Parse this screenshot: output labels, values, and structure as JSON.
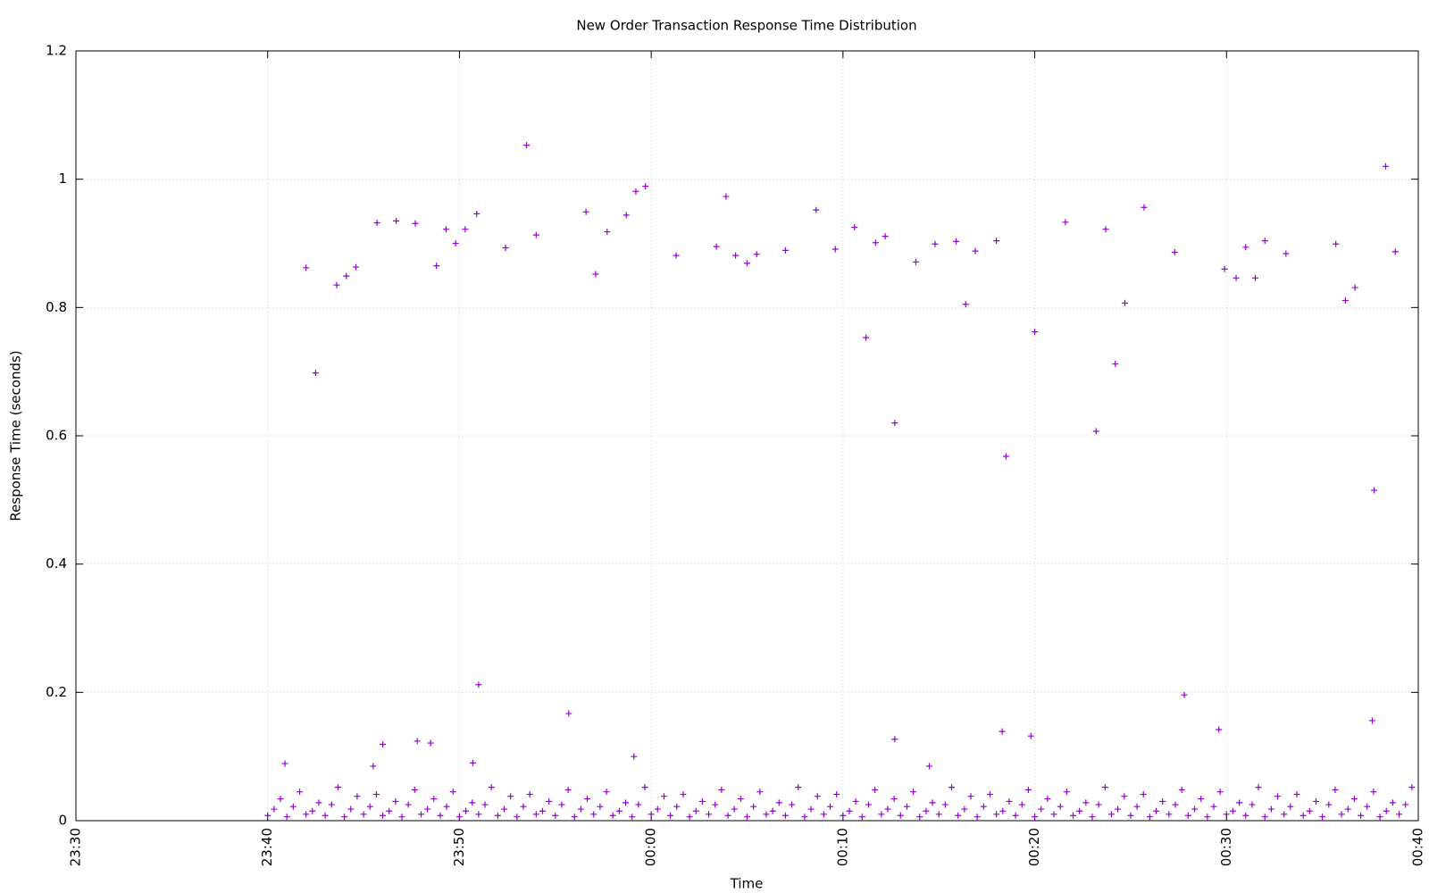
{
  "chart_data": {
    "type": "scatter",
    "title": "New Order Transaction Response Time Distribution",
    "x_label": "Time",
    "y_label": "Response Time (seconds)",
    "color": "#9400d3",
    "grid": true,
    "xlim": [
      "23:30",
      "00:40"
    ],
    "xticks": [
      "23:30",
      "23:40",
      "23:50",
      "00:00",
      "00:10",
      "00:20",
      "00:30",
      "00:40"
    ],
    "ylim": [
      0,
      1.2
    ],
    "yticks": [
      0,
      0.2,
      0.4,
      0.6,
      0.8,
      1,
      1.2
    ],
    "x": [
      "23:42:00",
      "23:42:30",
      "23:43:36",
      "23:44:06",
      "23:44:36",
      "23:45:42",
      "23:46:42",
      "23:47:42",
      "23:48:48",
      "23:49:18",
      "23:49:48",
      "23:50:18",
      "23:50:54",
      "23:52:24",
      "23:53:30",
      "23:54:00",
      "23:56:36",
      "23:57:06",
      "23:57:42",
      "23:58:42",
      "23:59:12",
      "23:59:42",
      "00:01:18",
      "00:03:24",
      "00:03:54",
      "00:04:24",
      "00:05:00",
      "00:05:30",
      "00:07:00",
      "00:08:36",
      "00:09:36",
      "00:10:36",
      "00:11:12",
      "00:11:42",
      "00:12:12",
      "00:12:42",
      "00:13:48",
      "00:14:48",
      "00:15:54",
      "00:16:24",
      "00:16:54",
      "00:18:00",
      "00:18:30",
      "00:20:00",
      "00:21:36",
      "00:23:12",
      "00:23:42",
      "00:24:12",
      "00:24:42",
      "00:25:42",
      "00:27:18",
      "00:29:54",
      "00:30:30",
      "00:31:00",
      "00:31:30",
      "00:32:00",
      "00:33:06",
      "00:35:42",
      "00:36:12",
      "00:36:42",
      "00:37:42",
      "00:38:18",
      "00:38:48",
      "23:51:00",
      "23:55:42",
      "00:27:48",
      "00:37:36",
      "00:29:36",
      "00:18:18",
      "00:19:48",
      "00:12:42",
      "23:47:48",
      "23:46:00",
      "23:40:54",
      "23:48:30",
      "23:45:30",
      "23:50:42",
      "23:59:06",
      "00:14:30",
      "23:40:00",
      "23:40:20",
      "23:40:40",
      "23:41:00",
      "23:41:20",
      "23:41:40",
      "23:42:00",
      "23:42:20",
      "23:42:40",
      "23:43:00",
      "23:43:20",
      "23:43:40",
      "23:44:00",
      "23:44:20",
      "23:44:40",
      "23:45:00",
      "23:45:20",
      "23:45:40",
      "23:46:00",
      "23:46:20",
      "23:46:40",
      "23:47:00",
      "23:47:20",
      "23:47:40",
      "23:48:00",
      "23:48:20",
      "23:48:40",
      "23:49:00",
      "23:49:20",
      "23:49:40",
      "23:50:00",
      "23:50:20",
      "23:50:40",
      "23:51:00",
      "23:51:20",
      "23:51:40",
      "23:52:00",
      "23:52:20",
      "23:52:40",
      "23:53:00",
      "23:53:20",
      "23:53:40",
      "23:54:00",
      "23:54:20",
      "23:54:40",
      "23:55:00",
      "23:55:20",
      "23:55:40",
      "23:56:00",
      "23:56:20",
      "23:56:40",
      "23:57:00",
      "23:57:20",
      "23:57:40",
      "23:58:00",
      "23:58:20",
      "23:58:40",
      "23:59:00",
      "23:59:20",
      "23:59:40",
      "00:00:00",
      "00:00:20",
      "00:00:40",
      "00:01:00",
      "00:01:20",
      "00:01:40",
      "00:02:00",
      "00:02:20",
      "00:02:40",
      "00:03:00",
      "00:03:20",
      "00:03:40",
      "00:04:00",
      "00:04:20",
      "00:04:40",
      "00:05:00",
      "00:05:20",
      "00:05:40",
      "00:06:00",
      "00:06:20",
      "00:06:40",
      "00:07:00",
      "00:07:20",
      "00:07:40",
      "00:08:00",
      "00:08:20",
      "00:08:40",
      "00:09:00",
      "00:09:20",
      "00:09:40",
      "00:10:00",
      "00:10:20",
      "00:10:40",
      "00:11:00",
      "00:11:20",
      "00:11:40",
      "00:12:00",
      "00:12:20",
      "00:12:40",
      "00:13:00",
      "00:13:20",
      "00:13:40",
      "00:14:00",
      "00:14:20",
      "00:14:40",
      "00:15:00",
      "00:15:20",
      "00:15:40",
      "00:16:00",
      "00:16:20",
      "00:16:40",
      "00:17:00",
      "00:17:20",
      "00:17:40",
      "00:18:00",
      "00:18:20",
      "00:18:40",
      "00:19:00",
      "00:19:20",
      "00:19:40",
      "00:20:00",
      "00:20:20",
      "00:20:40",
      "00:21:00",
      "00:21:20",
      "00:21:40",
      "00:22:00",
      "00:22:20",
      "00:22:40",
      "00:23:00",
      "00:23:20",
      "00:23:40",
      "00:24:00",
      "00:24:20",
      "00:24:40",
      "00:25:00",
      "00:25:20",
      "00:25:40",
      "00:26:00",
      "00:26:20",
      "00:26:40",
      "00:27:00",
      "00:27:20",
      "00:27:40",
      "00:28:00",
      "00:28:20",
      "00:28:40",
      "00:29:00",
      "00:29:20",
      "00:29:40",
      "00:30:00",
      "00:30:20",
      "00:30:40",
      "00:31:00",
      "00:31:20",
      "00:31:40",
      "00:32:00",
      "00:32:20",
      "00:32:40",
      "00:33:00",
      "00:33:20",
      "00:33:40",
      "00:34:00",
      "00:34:20",
      "00:34:40",
      "00:35:00",
      "00:35:20",
      "00:35:40",
      "00:36:00",
      "00:36:20",
      "00:36:40",
      "00:37:00",
      "00:37:20",
      "00:37:40",
      "00:38:00",
      "00:38:20",
      "00:38:40",
      "00:39:00",
      "00:39:20",
      "00:39:40"
    ],
    "values": [
      0.862,
      0.698,
      0.835,
      0.849,
      0.863,
      0.932,
      0.935,
      0.931,
      0.865,
      0.922,
      0.9,
      0.922,
      0.946,
      0.893,
      1.053,
      0.913,
      0.949,
      0.852,
      0.918,
      0.944,
      0.981,
      0.989,
      0.881,
      0.895,
      0.973,
      0.881,
      0.869,
      0.883,
      0.889,
      0.952,
      0.891,
      0.925,
      0.753,
      0.901,
      0.911,
      0.62,
      0.871,
      0.899,
      0.903,
      0.805,
      0.888,
      0.904,
      0.568,
      0.762,
      0.933,
      0.607,
      0.922,
      0.712,
      0.807,
      0.956,
      0.886,
      0.86,
      0.846,
      0.894,
      0.846,
      0.904,
      0.884,
      0.899,
      0.811,
      0.831,
      0.515,
      1.02,
      0.887,
      0.212,
      0.167,
      0.196,
      0.156,
      0.142,
      0.139,
      0.132,
      0.127,
      0.124,
      0.119,
      0.089,
      0.121,
      0.085,
      0.09,
      0.1,
      0.085,
      0.008,
      0.018,
      0.034,
      0.006,
      0.022,
      0.045,
      0.01,
      0.015,
      0.028,
      0.008,
      0.025,
      0.052,
      0.006,
      0.018,
      0.038,
      0.01,
      0.022,
      0.041,
      0.008,
      0.015,
      0.03,
      0.006,
      0.025,
      0.048,
      0.01,
      0.018,
      0.034,
      0.008,
      0.022,
      0.045,
      0.006,
      0.015,
      0.028,
      0.01,
      0.025,
      0.052,
      0.008,
      0.018,
      0.038,
      0.006,
      0.022,
      0.041,
      0.01,
      0.015,
      0.03,
      0.008,
      0.025,
      0.048,
      0.006,
      0.018,
      0.034,
      0.01,
      0.022,
      0.045,
      0.008,
      0.015,
      0.028,
      0.006,
      0.025,
      0.052,
      0.01,
      0.018,
      0.038,
      0.008,
      0.022,
      0.041,
      0.006,
      0.015,
      0.03,
      0.01,
      0.025,
      0.048,
      0.008,
      0.018,
      0.034,
      0.006,
      0.022,
      0.045,
      0.01,
      0.015,
      0.028,
      0.008,
      0.025,
      0.052,
      0.006,
      0.018,
      0.038,
      0.01,
      0.022,
      0.041,
      0.008,
      0.015,
      0.03,
      0.006,
      0.025,
      0.048,
      0.01,
      0.018,
      0.034,
      0.008,
      0.022,
      0.045,
      0.006,
      0.015,
      0.028,
      0.01,
      0.025,
      0.052,
      0.008,
      0.018,
      0.038,
      0.006,
      0.022,
      0.041,
      0.01,
      0.015,
      0.03,
      0.008,
      0.025,
      0.048,
      0.006,
      0.018,
      0.034,
      0.01,
      0.022,
      0.045,
      0.008,
      0.015,
      0.028,
      0.006,
      0.025,
      0.052,
      0.01,
      0.018,
      0.038,
      0.008,
      0.022,
      0.041,
      0.006,
      0.015,
      0.03,
      0.01,
      0.025,
      0.048,
      0.008,
      0.018,
      0.034,
      0.006,
      0.022,
      0.045,
      0.01,
      0.015,
      0.028,
      0.008,
      0.025,
      0.052,
      0.006,
      0.018,
      0.038,
      0.01,
      0.022,
      0.041,
      0.008,
      0.015,
      0.03,
      0.006,
      0.025,
      0.048,
      0.01,
      0.018,
      0.034,
      0.008,
      0.022,
      0.045,
      0.006,
      0.015,
      0.028,
      0.01,
      0.025,
      0.052
    ]
  }
}
